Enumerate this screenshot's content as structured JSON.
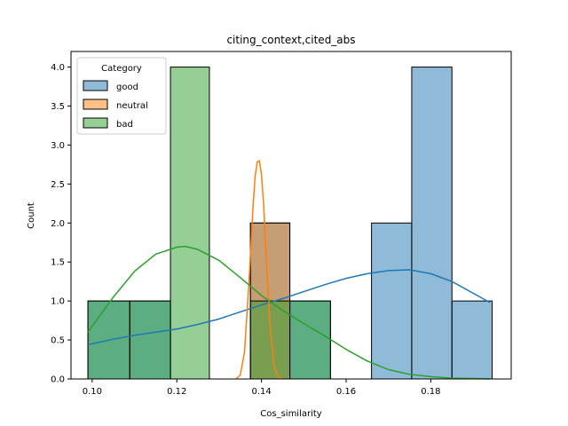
{
  "chart_data": {
    "type": "histogram",
    "title": "citing_context,cited_abs",
    "xlabel": "Cos_similarity",
    "ylabel": "Count",
    "xlim": [
      0.095,
      0.199
    ],
    "ylim": [
      0,
      4.2
    ],
    "xticks": [
      0.1,
      0.12,
      0.14,
      0.16,
      0.18
    ],
    "xtick_labels": [
      "0.10",
      "0.12",
      "0.14",
      "0.16",
      "0.18"
    ],
    "yticks": [
      0.0,
      0.5,
      1.0,
      1.5,
      2.0,
      2.5,
      3.0,
      3.5,
      4.0
    ],
    "ytick_labels": [
      "0.0",
      "0.5",
      "1.0",
      "1.5",
      "2.0",
      "2.5",
      "3.0",
      "3.5",
      "4.0"
    ],
    "grid": false,
    "legend": {
      "title": "Category",
      "placement": "upper-left",
      "entries": [
        "good",
        "neutral",
        "bad"
      ]
    },
    "series": [
      {
        "name": "good",
        "color": "#1f77b4",
        "bins": [
          {
            "x0": 0.099,
            "x1": 0.1089,
            "count": 1
          },
          {
            "x0": 0.1089,
            "x1": 0.1185,
            "count": 1
          },
          {
            "x0": 0.1374,
            "x1": 0.1467,
            "count": 2
          },
          {
            "x0": 0.1467,
            "x1": 0.1563,
            "count": 1
          },
          {
            "x0": 0.166,
            "x1": 0.1755,
            "count": 2
          },
          {
            "x0": 0.1755,
            "x1": 0.185,
            "count": 4
          },
          {
            "x0": 0.185,
            "x1": 0.1945,
            "count": 1
          }
        ],
        "kde": {
          "x": [
            0.099,
            0.105,
            0.11,
            0.115,
            0.12,
            0.125,
            0.13,
            0.135,
            0.14,
            0.145,
            0.15,
            0.155,
            0.16,
            0.165,
            0.17,
            0.175,
            0.18,
            0.185,
            0.19,
            0.194
          ],
          "y": [
            0.44,
            0.51,
            0.56,
            0.6,
            0.64,
            0.7,
            0.77,
            0.86,
            0.95,
            1.03,
            1.12,
            1.21,
            1.29,
            1.35,
            1.39,
            1.4,
            1.35,
            1.25,
            1.1,
            0.98
          ]
        }
      },
      {
        "name": "neutral",
        "color": "#ff7f0e",
        "bins": [
          {
            "x0": 0.1374,
            "x1": 0.1467,
            "count": 2
          }
        ],
        "kde": {
          "x": [
            0.134,
            0.135,
            0.136,
            0.137,
            0.138,
            0.1385,
            0.139,
            0.1395,
            0.14,
            0.1405,
            0.141,
            0.142,
            0.143,
            0.144,
            0.145
          ],
          "y": [
            0.0,
            0.05,
            0.35,
            1.2,
            2.2,
            2.6,
            2.78,
            2.8,
            2.62,
            2.25,
            1.7,
            0.7,
            0.15,
            0.02,
            0.0
          ]
        }
      },
      {
        "name": "bad",
        "color": "#2ca02c",
        "bins": [
          {
            "x0": 0.099,
            "x1": 0.1089,
            "count": 1
          },
          {
            "x0": 0.1089,
            "x1": 0.1185,
            "count": 1
          },
          {
            "x0": 0.1185,
            "x1": 0.1277,
            "count": 4
          },
          {
            "x0": 0.1374,
            "x1": 0.1467,
            "count": 1
          },
          {
            "x0": 0.1467,
            "x1": 0.1563,
            "count": 1
          }
        ],
        "kde": {
          "x": [
            0.099,
            0.105,
            0.11,
            0.115,
            0.12,
            0.122,
            0.125,
            0.13,
            0.135,
            0.14,
            0.145,
            0.15,
            0.155,
            0.16,
            0.165,
            0.17,
            0.175,
            0.18,
            0.185,
            0.19,
            0.194
          ],
          "y": [
            0.6,
            1.05,
            1.38,
            1.6,
            1.69,
            1.7,
            1.66,
            1.52,
            1.3,
            1.07,
            0.88,
            0.71,
            0.55,
            0.38,
            0.23,
            0.12,
            0.06,
            0.03,
            0.01,
            0.005,
            0.0
          ]
        }
      }
    ]
  }
}
